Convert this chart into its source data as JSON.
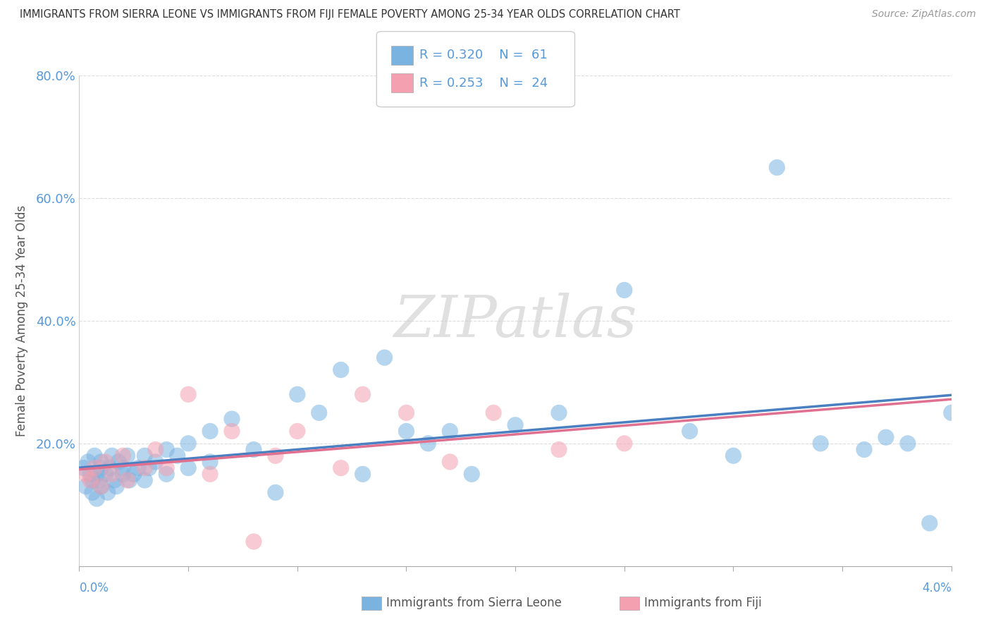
{
  "title": "IMMIGRANTS FROM SIERRA LEONE VS IMMIGRANTS FROM FIJI FEMALE POVERTY AMONG 25-34 YEAR OLDS CORRELATION CHART",
  "source": "Source: ZipAtlas.com",
  "ylabel": "Female Poverty Among 25-34 Year Olds",
  "yticks": [
    "",
    "20.0%",
    "40.0%",
    "60.0%",
    "80.0%"
  ],
  "ytick_vals": [
    0.0,
    0.2,
    0.4,
    0.6,
    0.8
  ],
  "watermark": "ZIPatlas",
  "sierra_leone_color": "#7ab3e0",
  "fiji_color": "#f4a0b0",
  "trend_sl_color": "#4a7fc1",
  "trend_fj_color": "#e07090",
  "tick_label_color": "#5599dd",
  "background_color": "#ffffff",
  "grid_color": "#dddddd",
  "legend_edge_color": "#cccccc",
  "title_color": "#333333",
  "source_color": "#999999",
  "ylabel_color": "#555555",
  "bottom_label_color": "#555555",
  "sierra_leone_x": [
    0.0002,
    0.0003,
    0.0004,
    0.0005,
    0.0006,
    0.0006,
    0.0007,
    0.0008,
    0.0008,
    0.0009,
    0.001,
    0.001,
    0.001,
    0.0012,
    0.0013,
    0.0014,
    0.0015,
    0.0016,
    0.0017,
    0.0018,
    0.002,
    0.002,
    0.0022,
    0.0023,
    0.0025,
    0.0027,
    0.003,
    0.003,
    0.0032,
    0.0035,
    0.004,
    0.004,
    0.0045,
    0.005,
    0.005,
    0.006,
    0.006,
    0.007,
    0.008,
    0.009,
    0.01,
    0.011,
    0.012,
    0.013,
    0.014,
    0.015,
    0.016,
    0.017,
    0.018,
    0.02,
    0.022,
    0.025,
    0.028,
    0.03,
    0.032,
    0.034,
    0.036,
    0.037,
    0.038,
    0.039,
    0.04
  ],
  "sierra_leone_y": [
    0.16,
    0.13,
    0.17,
    0.15,
    0.14,
    0.12,
    0.18,
    0.11,
    0.15,
    0.14,
    0.17,
    0.13,
    0.16,
    0.15,
    0.12,
    0.16,
    0.18,
    0.14,
    0.13,
    0.17,
    0.16,
    0.15,
    0.18,
    0.14,
    0.15,
    0.16,
    0.18,
    0.14,
    0.16,
    0.17,
    0.19,
    0.15,
    0.18,
    0.2,
    0.16,
    0.22,
    0.17,
    0.24,
    0.19,
    0.12,
    0.28,
    0.25,
    0.32,
    0.15,
    0.34,
    0.22,
    0.2,
    0.22,
    0.15,
    0.23,
    0.25,
    0.45,
    0.22,
    0.18,
    0.65,
    0.2,
    0.19,
    0.21,
    0.2,
    0.07,
    0.25
  ],
  "fiji_x": [
    0.0003,
    0.0005,
    0.0007,
    0.001,
    0.0012,
    0.0015,
    0.002,
    0.0022,
    0.003,
    0.0035,
    0.004,
    0.005,
    0.006,
    0.007,
    0.008,
    0.009,
    0.01,
    0.012,
    0.013,
    0.015,
    0.017,
    0.019,
    0.022,
    0.025
  ],
  "fiji_y": [
    0.15,
    0.14,
    0.16,
    0.13,
    0.17,
    0.15,
    0.18,
    0.14,
    0.16,
    0.19,
    0.16,
    0.28,
    0.15,
    0.22,
    0.04,
    0.18,
    0.22,
    0.16,
    0.28,
    0.25,
    0.17,
    0.25,
    0.19,
    0.2
  ]
}
